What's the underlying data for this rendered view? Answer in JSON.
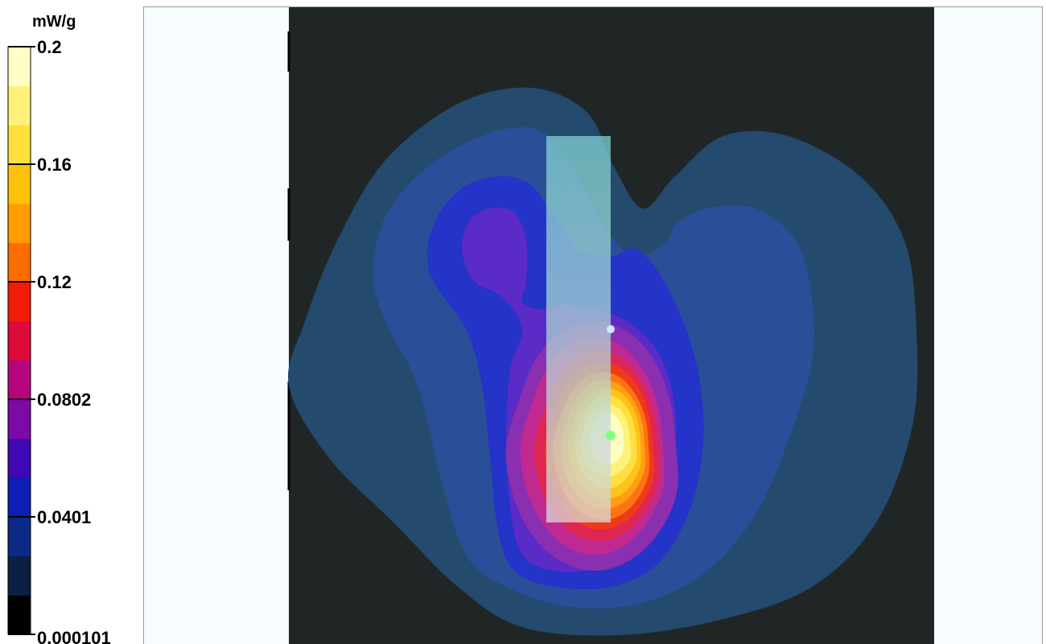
{
  "chart_data": {
    "type": "heatmap",
    "title": "",
    "unit": "mW/g",
    "colorbar": {
      "min": 0.000101,
      "max": 0.2,
      "tick_labels": [
        "0.2",
        "0.16",
        "0.12",
        "0.0802",
        "0.0401",
        "0.000101"
      ],
      "tick_values": [
        0.2,
        0.16,
        0.12,
        0.0802,
        0.0401,
        0.000101
      ],
      "levels": 15,
      "colors": [
        "#000000",
        "#0c1f45",
        "#0a2a85",
        "#0c1eb3",
        "#4008b4",
        "#7c0aa6",
        "#b4047e",
        "#db0a38",
        "#f21c05",
        "#ff6d00",
        "#ff9d00",
        "#ffc20a",
        "#ffe03a",
        "#fff178",
        "#ffffc5"
      ]
    },
    "field": {
      "peak_value": 0.2,
      "contour_levels": [
        0.0134,
        0.0267,
        0.0401,
        0.0534,
        0.0668,
        0.0802,
        0.0935,
        0.107,
        0.12,
        0.133,
        0.147,
        0.16,
        0.173,
        0.187
      ],
      "overlay": "rectangular probe region (translucent)"
    },
    "markers": [
      {
        "name": "peak-point",
        "color": "#7dff7d"
      },
      {
        "name": "reference-point",
        "color": "#cfe8ff"
      }
    ]
  }
}
